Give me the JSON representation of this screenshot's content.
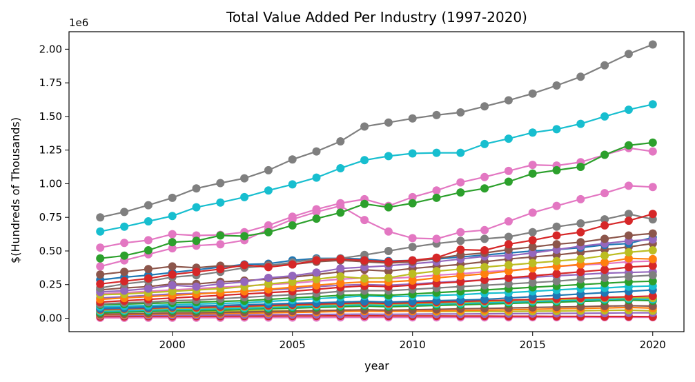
{
  "chart_data": {
    "type": "line",
    "title": "Total Value Added Per Industry (1997-2020)",
    "xlabel": "year",
    "ylabel": "$(Hundreds of Thousands)",
    "y_offset_label": "1e6",
    "x": [
      1997,
      1998,
      1999,
      2000,
      2001,
      2002,
      2003,
      2004,
      2005,
      2006,
      2007,
      2008,
      2009,
      2010,
      2011,
      2012,
      2013,
      2014,
      2015,
      2016,
      2017,
      2018,
      2019,
      2020
    ],
    "xlim": [
      1995.7,
      2021.3
    ],
    "ylim": [
      -0.1,
      2.13
    ],
    "x_ticks": [
      2000,
      2005,
      2010,
      2015,
      2020
    ],
    "y_ticks": [
      0.0,
      0.25,
      0.5,
      0.75,
      1.0,
      1.25,
      1.5,
      1.75,
      2.0
    ],
    "x_tick_labels": [
      "2000",
      "2005",
      "2010",
      "2015",
      "2020"
    ],
    "y_tick_labels": [
      "0.00",
      "0.25",
      "0.50",
      "0.75",
      "1.00",
      "1.25",
      "1.50",
      "1.75",
      "2.00"
    ],
    "grid": false,
    "legend": "none",
    "series": [
      {
        "color": "#7f7f7f",
        "values": [
          0.75,
          0.79,
          0.84,
          0.895,
          0.965,
          1.005,
          1.04,
          1.1,
          1.18,
          1.24,
          1.315,
          1.425,
          1.455,
          1.485,
          1.51,
          1.53,
          1.575,
          1.62,
          1.67,
          1.73,
          1.795,
          1.88,
          1.965,
          2.035
        ]
      },
      {
        "color": "#17becf",
        "values": [
          0.645,
          0.68,
          0.72,
          0.76,
          0.825,
          0.86,
          0.9,
          0.95,
          0.995,
          1.045,
          1.115,
          1.175,
          1.205,
          1.225,
          1.23,
          1.23,
          1.295,
          1.335,
          1.38,
          1.405,
          1.445,
          1.5,
          1.55,
          1.59
        ]
      },
      {
        "color": "#2ca02c",
        "values": [
          0.445,
          0.465,
          0.505,
          0.565,
          0.575,
          0.615,
          0.61,
          0.64,
          0.69,
          0.74,
          0.785,
          0.85,
          0.825,
          0.855,
          0.895,
          0.935,
          0.965,
          1.015,
          1.075,
          1.1,
          1.125,
          1.215,
          1.285,
          1.305
        ]
      },
      {
        "color": "#e377c2",
        "values": [
          0.525,
          0.56,
          0.58,
          0.625,
          0.615,
          0.62,
          0.64,
          0.69,
          0.755,
          0.81,
          0.855,
          0.885,
          0.835,
          0.9,
          0.95,
          1.01,
          1.05,
          1.095,
          1.14,
          1.135,
          1.16,
          1.215,
          1.265,
          1.24
        ]
      },
      {
        "color": "#e377c2",
        "values": [
          0.385,
          0.43,
          0.475,
          0.52,
          0.54,
          0.55,
          0.58,
          0.66,
          0.735,
          0.79,
          0.835,
          0.73,
          0.645,
          0.595,
          0.59,
          0.64,
          0.655,
          0.72,
          0.785,
          0.835,
          0.885,
          0.93,
          0.985,
          0.975
        ]
      },
      {
        "color": "#d62728",
        "values": [
          0.255,
          0.275,
          0.295,
          0.325,
          0.345,
          0.365,
          0.395,
          0.38,
          0.4,
          0.43,
          0.44,
          0.43,
          0.42,
          0.43,
          0.45,
          0.51,
          0.505,
          0.55,
          0.58,
          0.615,
          0.64,
          0.69,
          0.725,
          0.775
        ]
      },
      {
        "color": "#7f7f7f",
        "values": [
          0.225,
          0.255,
          0.275,
          0.305,
          0.32,
          0.345,
          0.375,
          0.39,
          0.415,
          0.44,
          0.445,
          0.47,
          0.5,
          0.53,
          0.555,
          0.575,
          0.59,
          0.605,
          0.64,
          0.68,
          0.705,
          0.735,
          0.775,
          0.735
        ]
      },
      {
        "color": "#8c564b",
        "values": [
          0.325,
          0.345,
          0.365,
          0.385,
          0.375,
          0.39,
          0.385,
          0.395,
          0.4,
          0.42,
          0.43,
          0.42,
          0.41,
          0.42,
          0.445,
          0.47,
          0.485,
          0.51,
          0.53,
          0.55,
          0.565,
          0.59,
          0.615,
          0.63
        ]
      },
      {
        "color": "#9467bd",
        "values": [
          0.195,
          0.205,
          0.22,
          0.245,
          0.235,
          0.255,
          0.27,
          0.3,
          0.315,
          0.34,
          0.37,
          0.38,
          0.39,
          0.405,
          0.42,
          0.44,
          0.46,
          0.465,
          0.485,
          0.51,
          0.535,
          0.555,
          0.575,
          0.585
        ]
      },
      {
        "color": "#1f77b4",
        "values": [
          0.285,
          0.305,
          0.32,
          0.34,
          0.36,
          0.38,
          0.4,
          0.405,
          0.43,
          0.445,
          0.445,
          0.44,
          0.425,
          0.43,
          0.44,
          0.455,
          0.47,
          0.485,
          0.5,
          0.51,
          0.525,
          0.545,
          0.555,
          0.6
        ]
      },
      {
        "color": "#bcbd22",
        "values": [
          0.175,
          0.18,
          0.19,
          0.2,
          0.21,
          0.22,
          0.235,
          0.255,
          0.27,
          0.29,
          0.31,
          0.295,
          0.3,
          0.33,
          0.35,
          0.365,
          0.38,
          0.395,
          0.41,
          0.425,
          0.44,
          0.465,
          0.49,
          0.505
        ]
      },
      {
        "color": "#ff7f0e",
        "values": [
          0.14,
          0.15,
          0.16,
          0.17,
          0.18,
          0.19,
          0.2,
          0.215,
          0.23,
          0.245,
          0.26,
          0.27,
          0.27,
          0.28,
          0.3,
          0.315,
          0.33,
          0.35,
          0.37,
          0.385,
          0.4,
          0.415,
          0.445,
          0.44
        ]
      },
      {
        "color": "#8c564b",
        "values": [
          0.21,
          0.225,
          0.235,
          0.255,
          0.255,
          0.27,
          0.28,
          0.29,
          0.305,
          0.325,
          0.345,
          0.36,
          0.35,
          0.37,
          0.385,
          0.4,
          0.42,
          0.44,
          0.455,
          0.47,
          0.49,
          0.51,
          0.53,
          0.555
        ]
      },
      {
        "color": "#d62728",
        "values": [
          0.12,
          0.13,
          0.14,
          0.15,
          0.16,
          0.17,
          0.18,
          0.19,
          0.2,
          0.215,
          0.23,
          0.24,
          0.235,
          0.245,
          0.26,
          0.27,
          0.285,
          0.3,
          0.315,
          0.33,
          0.345,
          0.36,
          0.38,
          0.39
        ]
      },
      {
        "color": "#e377c2",
        "values": [
          0.18,
          0.19,
          0.2,
          0.21,
          0.22,
          0.23,
          0.24,
          0.25,
          0.26,
          0.275,
          0.29,
          0.3,
          0.295,
          0.305,
          0.32,
          0.33,
          0.345,
          0.355,
          0.37,
          0.385,
          0.395,
          0.405,
          0.42,
          0.425
        ]
      },
      {
        "color": "#7f7f7f",
        "values": [
          0.105,
          0.115,
          0.12,
          0.13,
          0.135,
          0.145,
          0.155,
          0.165,
          0.175,
          0.185,
          0.2,
          0.205,
          0.205,
          0.215,
          0.225,
          0.235,
          0.245,
          0.255,
          0.265,
          0.275,
          0.29,
          0.3,
          0.31,
          0.32
        ]
      },
      {
        "color": "#9467bd",
        "values": [
          0.15,
          0.16,
          0.17,
          0.18,
          0.185,
          0.19,
          0.2,
          0.21,
          0.22,
          0.235,
          0.245,
          0.25,
          0.245,
          0.255,
          0.265,
          0.275,
          0.285,
          0.295,
          0.305,
          0.315,
          0.325,
          0.335,
          0.34,
          0.345
        ]
      },
      {
        "color": "#2ca02c",
        "values": [
          0.1,
          0.105,
          0.11,
          0.115,
          0.12,
          0.125,
          0.13,
          0.14,
          0.15,
          0.16,
          0.17,
          0.175,
          0.17,
          0.18,
          0.19,
          0.2,
          0.21,
          0.22,
          0.23,
          0.24,
          0.25,
          0.26,
          0.27,
          0.275
        ]
      },
      {
        "color": "#17becf",
        "values": [
          0.085,
          0.09,
          0.095,
          0.1,
          0.105,
          0.11,
          0.115,
          0.125,
          0.135,
          0.145,
          0.155,
          0.165,
          0.16,
          0.165,
          0.17,
          0.175,
          0.185,
          0.19,
          0.2,
          0.21,
          0.22,
          0.225,
          0.235,
          0.24
        ]
      },
      {
        "color": "#1f77b4",
        "values": [
          0.07,
          0.075,
          0.08,
          0.085,
          0.09,
          0.095,
          0.1,
          0.105,
          0.11,
          0.115,
          0.12,
          0.125,
          0.12,
          0.125,
          0.13,
          0.135,
          0.14,
          0.15,
          0.16,
          0.17,
          0.18,
          0.19,
          0.2,
          0.21
        ]
      },
      {
        "color": "#d62728",
        "values": [
          0.065,
          0.07,
          0.075,
          0.08,
          0.08,
          0.085,
          0.09,
          0.095,
          0.1,
          0.105,
          0.11,
          0.115,
          0.11,
          0.115,
          0.12,
          0.125,
          0.13,
          0.135,
          0.14,
          0.145,
          0.15,
          0.155,
          0.16,
          0.165
        ]
      },
      {
        "color": "#bcbd22",
        "values": [
          0.06,
          0.065,
          0.07,
          0.075,
          0.075,
          0.08,
          0.085,
          0.09,
          0.095,
          0.1,
          0.105,
          0.11,
          0.105,
          0.11,
          0.115,
          0.12,
          0.125,
          0.13,
          0.135,
          0.14,
          0.145,
          0.15,
          0.155,
          0.15
        ]
      },
      {
        "color": "#17becf",
        "values": [
          0.05,
          0.055,
          0.06,
          0.065,
          0.065,
          0.07,
          0.075,
          0.08,
          0.085,
          0.09,
          0.095,
          0.1,
          0.095,
          0.1,
          0.105,
          0.11,
          0.115,
          0.12,
          0.125,
          0.13,
          0.135,
          0.14,
          0.145,
          0.14
        ]
      },
      {
        "color": "#2ca02c",
        "values": [
          0.04,
          0.045,
          0.05,
          0.055,
          0.055,
          0.06,
          0.065,
          0.07,
          0.075,
          0.08,
          0.085,
          0.09,
          0.085,
          0.09,
          0.095,
          0.1,
          0.105,
          0.11,
          0.115,
          0.12,
          0.125,
          0.13,
          0.135,
          0.13
        ]
      },
      {
        "color": "#8c564b",
        "values": [
          0.03,
          0.033,
          0.036,
          0.04,
          0.04,
          0.043,
          0.046,
          0.05,
          0.053,
          0.056,
          0.06,
          0.063,
          0.06,
          0.063,
          0.066,
          0.07,
          0.073,
          0.076,
          0.08,
          0.083,
          0.086,
          0.09,
          0.093,
          0.09
        ]
      },
      {
        "color": "#ff7f0e",
        "values": [
          0.025,
          0.027,
          0.03,
          0.033,
          0.033,
          0.035,
          0.038,
          0.04,
          0.043,
          0.046,
          0.05,
          0.052,
          0.05,
          0.052,
          0.055,
          0.058,
          0.06,
          0.063,
          0.066,
          0.07,
          0.073,
          0.076,
          0.08,
          0.075
        ]
      },
      {
        "color": "#bcbd22",
        "values": [
          0.045,
          0.048,
          0.05,
          0.053,
          0.052,
          0.052,
          0.053,
          0.055,
          0.056,
          0.058,
          0.06,
          0.058,
          0.055,
          0.052,
          0.05,
          0.05,
          0.05,
          0.05,
          0.052,
          0.054,
          0.056,
          0.058,
          0.06,
          0.055
        ]
      },
      {
        "color": "#9467bd",
        "values": [
          0.02,
          0.021,
          0.022,
          0.023,
          0.023,
          0.024,
          0.025,
          0.026,
          0.027,
          0.028,
          0.029,
          0.03,
          0.029,
          0.03,
          0.031,
          0.032,
          0.033,
          0.034,
          0.035,
          0.036,
          0.037,
          0.038,
          0.04,
          0.04
        ]
      },
      {
        "color": "#d62728",
        "values": [
          0.012,
          0.013,
          0.014,
          0.015,
          0.015,
          0.015,
          0.016,
          0.016,
          0.017,
          0.017,
          0.018,
          0.018,
          0.017,
          0.017,
          0.017,
          0.016,
          0.016,
          0.015,
          0.015,
          0.014,
          0.014,
          0.013,
          0.013,
          0.012
        ]
      },
      {
        "color": "#e377c2",
        "values": [
          0.003,
          0.003,
          0.004,
          0.004,
          0.004,
          0.004,
          0.005,
          0.005,
          0.005,
          0.005,
          0.006,
          0.006,
          0.006,
          0.006,
          0.006,
          0.006,
          0.006,
          0.006,
          0.007,
          0.007,
          0.007,
          0.007,
          0.007,
          0.007
        ]
      },
      {
        "color": "#1f77b4",
        "values": [
          0.08,
          0.082,
          0.085,
          0.087,
          0.088,
          0.09,
          0.092,
          0.094,
          0.097,
          0.1,
          0.102,
          0.105,
          0.102,
          0.105,
          0.108,
          0.111,
          0.114,
          0.117,
          0.12,
          0.123,
          0.126,
          0.13,
          0.135,
          0.14
        ]
      }
    ]
  }
}
